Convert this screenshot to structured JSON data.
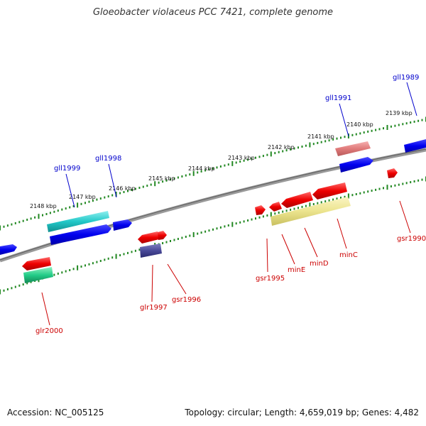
{
  "title": "Gloeobacter violaceus PCC 7421, complete genome",
  "footer": {
    "accession": "Accession: NC_005125",
    "summary": "Topology: circular; Length: 4,659,019 bp; Genes: 4,482"
  },
  "colors": {
    "backbone": "#888888",
    "tick": "#228822",
    "forward_label": "#0000cc",
    "reverse_label": "#cc0000"
  },
  "kbp_labels": [
    "2148 kbp",
    "2147 kbp",
    "2146 kbp",
    "2145 kbp",
    "2144 kbp",
    "2143 kbp",
    "2142 kbp",
    "2141 kbp",
    "2140 kbp",
    "2139 kbp"
  ],
  "forward_genes": [
    {
      "label": "gll1999"
    },
    {
      "label": "gll1998"
    },
    {
      "label": "gll1991"
    },
    {
      "label": "gll1989"
    }
  ],
  "reverse_genes": [
    {
      "label": "glr2000"
    },
    {
      "label": "glr1997"
    },
    {
      "label": "gsr1996"
    },
    {
      "label": "gsr1995"
    },
    {
      "label": "minE"
    },
    {
      "label": "minD"
    },
    {
      "label": "minC"
    },
    {
      "label": "gsr1990"
    }
  ]
}
